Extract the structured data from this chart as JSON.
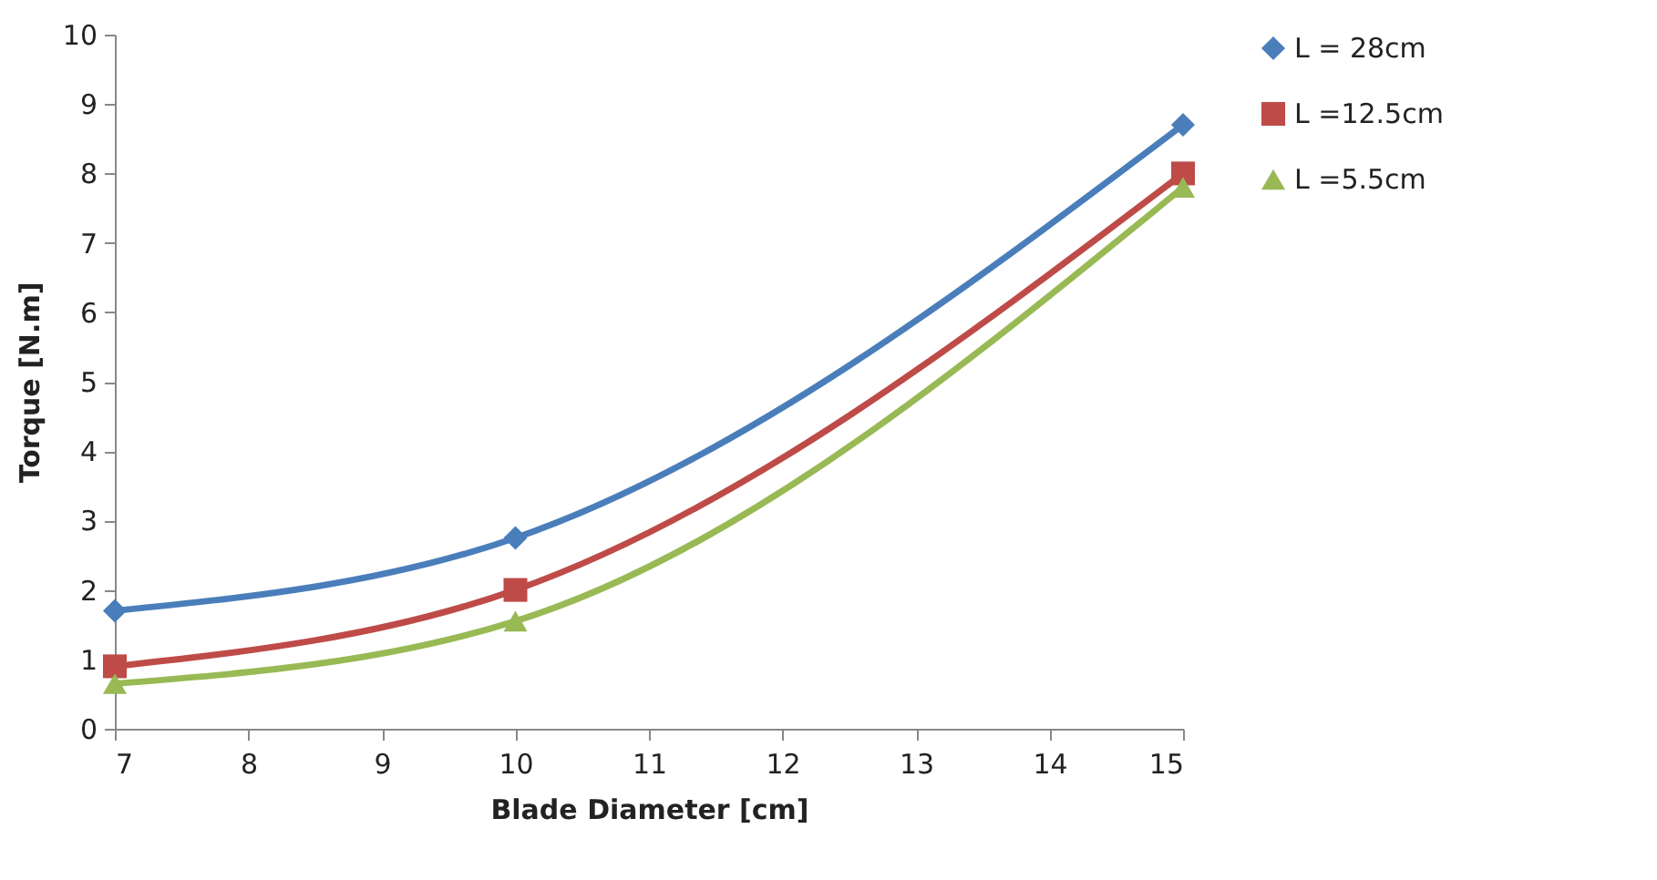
{
  "chart_data": {
    "type": "line",
    "xlabel": "Blade Diameter [cm]",
    "ylabel": "Torque [N.m]",
    "x": [
      7,
      10,
      15
    ],
    "series": [
      {
        "name": "L = 28cm",
        "color": "#4a7ebb",
        "marker": "diamond",
        "values": [
          1.7,
          2.75,
          8.7
        ]
      },
      {
        "name": "L =12.5cm",
        "color": "#be4b48",
        "marker": "square",
        "values": [
          0.9,
          2.0,
          8.0
        ]
      },
      {
        "name": "L =5.5cm",
        "color": "#98b954",
        "marker": "triangle",
        "values": [
          0.65,
          1.55,
          7.8
        ]
      }
    ],
    "xlim": [
      7,
      15
    ],
    "xticks": [
      7,
      8,
      9,
      10,
      11,
      12,
      13,
      14,
      15
    ],
    "ylim": [
      0,
      10
    ],
    "yticks": [
      0,
      1,
      2,
      3,
      4,
      5,
      6,
      7,
      8,
      9,
      10
    ],
    "grid": false,
    "legend": "right",
    "line_style": "solid"
  }
}
